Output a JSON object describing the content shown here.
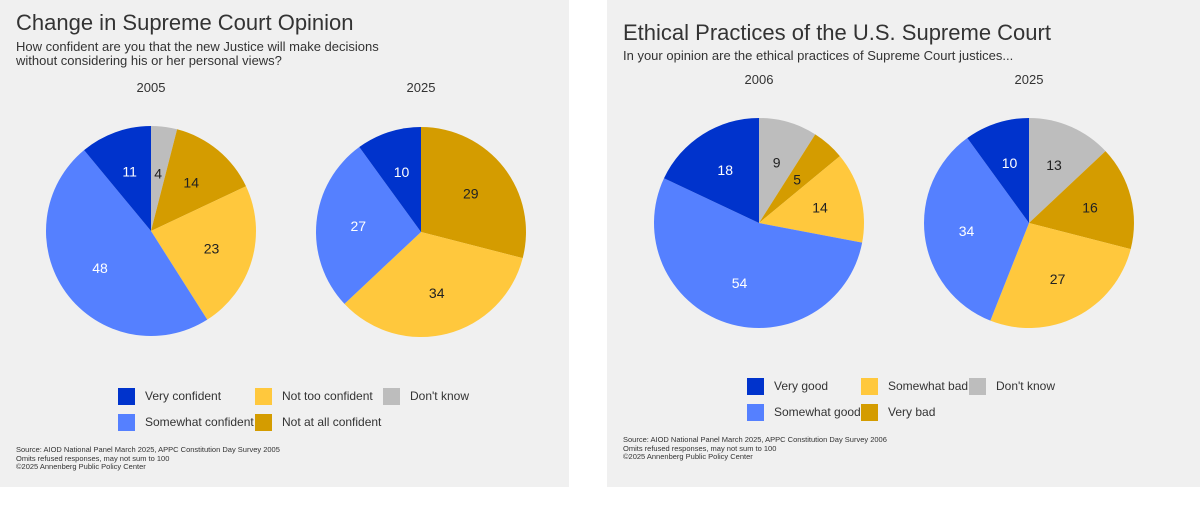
{
  "colors": {
    "very_confident": "#0033cc",
    "somewhat_confident": "#5580ff",
    "not_too_confident": "#ffc83d",
    "not_at_all_confident": "#d49c00",
    "dont_know": "#bdbdbd"
  },
  "left": {
    "title": "Change in Supreme Court Opinion",
    "subtitle": "How confident are you that the new Justice will make decisions\nwithout considering his or her personal views?",
    "legend": [
      "Very confident",
      "Not too confident",
      "Don't know",
      "Somewhat confident",
      "Not at all confident"
    ],
    "source": "Source: AIOD National Panel March 2025, APPC Constitution Day Survey 2005\nOmits refused responses, may not sum to 100\n©2025 Annenberg Public Policy Center"
  },
  "right": {
    "title": "Ethical Practices of the U.S. Supreme Court",
    "subtitle": "In your opinion are the ethical practices of Supreme Court justices...",
    "legend": [
      "Very good",
      "Somewhat bad",
      "Don't know",
      "Somewhat good",
      "Very bad"
    ],
    "source": "Source: AIOD National Panel March 2025, APPC Constitution Day Survey 2006\nOmits refused responses, may not sum to 100\n©2025 Annenberg Public Policy Center"
  },
  "chart_data": [
    {
      "type": "pie",
      "title": "2005",
      "labels": [
        "Don't know",
        "Not at all confident",
        "Not too confident",
        "Somewhat confident",
        "Very confident"
      ],
      "values": [
        4,
        14,
        23,
        48,
        11
      ],
      "colors": [
        "#bdbdbd",
        "#d49c00",
        "#ffc83d",
        "#5580ff",
        "#0033cc"
      ]
    },
    {
      "type": "pie",
      "title": "2025",
      "labels": [
        "Don't know",
        "Not at all confident",
        "Not too confident",
        "Somewhat confident",
        "Very confident"
      ],
      "values": [
        0,
        29,
        34,
        27,
        10
      ],
      "colors": [
        "#bdbdbd",
        "#d49c00",
        "#ffc83d",
        "#5580ff",
        "#0033cc"
      ]
    },
    {
      "type": "pie",
      "title": "2006",
      "labels": [
        "Don't know",
        "Very bad",
        "Somewhat bad",
        "Somewhat good",
        "Very good"
      ],
      "values": [
        9,
        5,
        14,
        54,
        18
      ],
      "colors": [
        "#bdbdbd",
        "#d49c00",
        "#ffc83d",
        "#5580ff",
        "#0033cc"
      ]
    },
    {
      "type": "pie",
      "title": "2025",
      "labels": [
        "Don't know",
        "Very bad",
        "Somewhat bad",
        "Somewhat good",
        "Very good"
      ],
      "values": [
        13,
        16,
        27,
        34,
        10
      ],
      "colors": [
        "#bdbdbd",
        "#d49c00",
        "#ffc83d",
        "#5580ff",
        "#0033cc"
      ]
    }
  ]
}
